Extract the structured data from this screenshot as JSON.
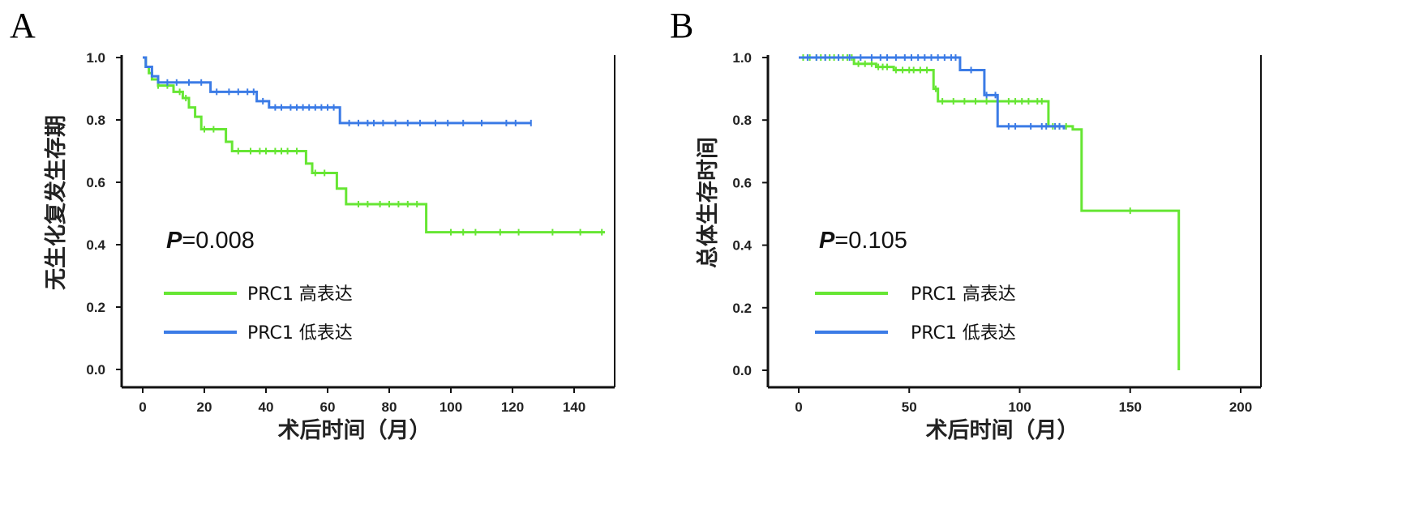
{
  "chart_data": [
    {
      "type": "line",
      "subtype": "kaplan-meier",
      "panel": "A",
      "xlabel": "术后时间（月）",
      "ylabel": "无生化复发生存期",
      "xlim": [
        0,
        150
      ],
      "ylim": [
        0,
        1.0
      ],
      "xticks": [
        "0",
        "20",
        "40",
        "60",
        "80",
        "100",
        "120",
        "140"
      ],
      "yticks": [
        "0.0",
        "0.2",
        "0.4",
        "0.6",
        "0.8",
        "1.0"
      ],
      "annotation": {
        "italic": "P",
        "rest": "=0.008"
      },
      "grid": false,
      "legend_position": "center-left",
      "series": [
        {
          "name": "PRC1 高表达",
          "color": "#66e633",
          "steps": [
            [
              0,
              1.0
            ],
            [
              1,
              0.97
            ],
            [
              2,
              0.95
            ],
            [
              3,
              0.93
            ],
            [
              5,
              0.91
            ],
            [
              10,
              0.89
            ],
            [
              13,
              0.87
            ],
            [
              15,
              0.84
            ],
            [
              17,
              0.81
            ],
            [
              19,
              0.77
            ],
            [
              27,
              0.73
            ],
            [
              29,
              0.7
            ],
            [
              53,
              0.66
            ],
            [
              55,
              0.63
            ],
            [
              63,
              0.58
            ],
            [
              66,
              0.53
            ],
            [
              92,
              0.44
            ],
            [
              150,
              0.44
            ]
          ],
          "censored": [
            5,
            8,
            12,
            14,
            20,
            23,
            31,
            35,
            38,
            40,
            43,
            45,
            47,
            50,
            56,
            59,
            70,
            73,
            77,
            80,
            83,
            86,
            89,
            100,
            104,
            108,
            116,
            122,
            133,
            142,
            149
          ]
        },
        {
          "name": "PRC1 低表达",
          "color": "#3b7be6",
          "steps": [
            [
              0,
              1.0
            ],
            [
              1,
              0.97
            ],
            [
              3,
              0.94
            ],
            [
              5,
              0.92
            ],
            [
              22,
              0.89
            ],
            [
              37,
              0.86
            ],
            [
              41,
              0.84
            ],
            [
              64,
              0.79
            ],
            [
              126,
              0.79
            ]
          ],
          "censored": [
            8,
            11,
            15,
            19,
            24,
            28,
            31,
            34,
            36,
            39,
            43,
            45,
            48,
            50,
            52,
            54,
            56,
            58,
            60,
            62,
            67,
            70,
            73,
            75,
            78,
            82,
            86,
            90,
            95,
            99,
            104,
            110,
            118,
            121,
            126
          ]
        }
      ]
    },
    {
      "type": "line",
      "subtype": "kaplan-meier",
      "panel": "B",
      "xlabel": "术后时间（月）",
      "ylabel": "总体生存时间",
      "xlim": [
        0,
        200
      ],
      "ylim": [
        0,
        1.0
      ],
      "xticks": [
        "0",
        "50",
        "100",
        "150",
        "200"
      ],
      "yticks": [
        "0.0",
        "0.2",
        "0.4",
        "0.6",
        "0.8",
        "1.0"
      ],
      "annotation": {
        "italic": "P",
        "rest": "=0.105"
      },
      "grid": false,
      "legend_position": "center-left",
      "series": [
        {
          "name": "PRC1 高表达",
          "color": "#66e633",
          "steps": [
            [
              0,
              1.0
            ],
            [
              25,
              0.98
            ],
            [
              35,
              0.97
            ],
            [
              43,
              0.96
            ],
            [
              61,
              0.9
            ],
            [
              63,
              0.86
            ],
            [
              113,
              0.78
            ],
            [
              124,
              0.77
            ],
            [
              128,
              0.51
            ],
            [
              172,
              0.0
            ]
          ],
          "censored": [
            2,
            5,
            8,
            10,
            12,
            14,
            16,
            18,
            20,
            22,
            24,
            27,
            30,
            33,
            36,
            38,
            40,
            44,
            47,
            50,
            52,
            55,
            58,
            62,
            65,
            70,
            75,
            80,
            85,
            90,
            95,
            98,
            101,
            104,
            108,
            110,
            115,
            118,
            121,
            150
          ]
        },
        {
          "name": "PRC1 低表达",
          "color": "#3b7be6",
          "steps": [
            [
              0,
              1.0
            ],
            [
              73,
              0.96
            ],
            [
              80,
              0.96
            ],
            [
              84,
              0.88
            ],
            [
              90,
              0.78
            ],
            [
              120,
              0.77
            ]
          ],
          "censored": [
            4,
            8,
            12,
            18,
            23,
            28,
            33,
            37,
            40,
            44,
            48,
            51,
            54,
            57,
            60,
            63,
            66,
            69,
            71,
            78,
            85,
            89,
            95,
            98,
            105,
            110,
            112,
            116,
            118
          ]
        }
      ]
    }
  ]
}
